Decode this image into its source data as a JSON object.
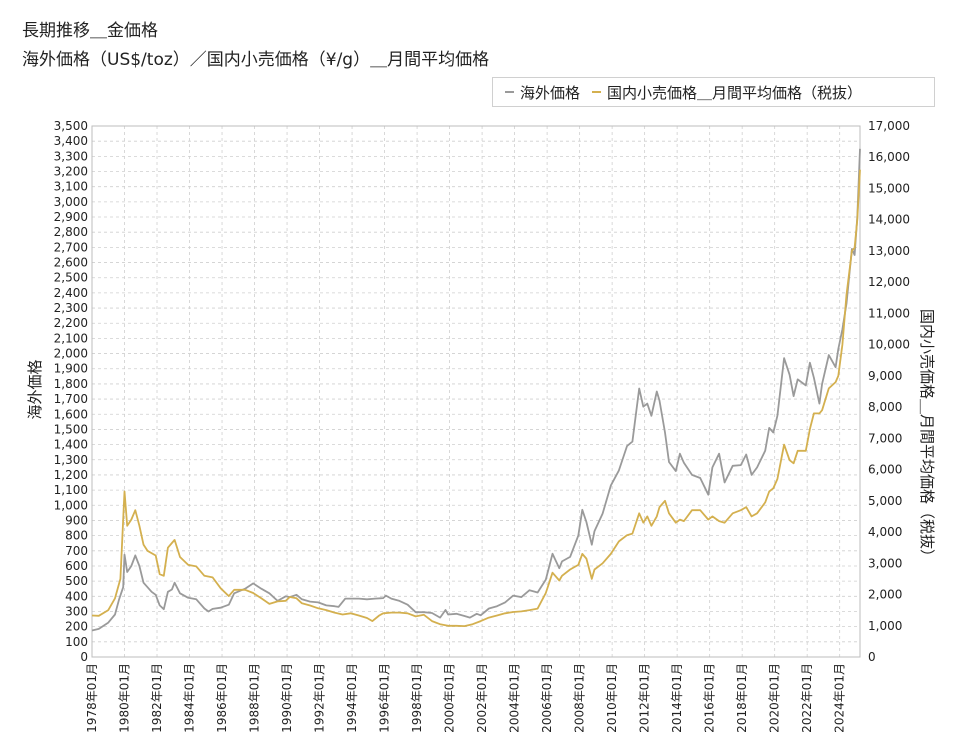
{
  "title_line1": "長期推移＿金価格",
  "title_line2": "海外価格（US$/toz）／国内小売価格（¥/g）＿月間平均価格",
  "chart_data": {
    "type": "line",
    "title": "長期推移＿金価格",
    "subtitle": "海外価格（US$/toz）／国内小売価格（¥/g）＿月間平均価格",
    "ylabel_left": "海外価格",
    "ylabel_right": "国内小売価格＿月間平均価格（税抜）",
    "ylim_left": [
      0,
      3500
    ],
    "ylim_right": [
      0,
      17000
    ],
    "left_ticks": [
      "0",
      "100",
      "200",
      "300",
      "400",
      "500",
      "600",
      "700",
      "800",
      "900",
      "1,000",
      "1,100",
      "1,200",
      "1,300",
      "1,400",
      "1,500",
      "1,600",
      "1,700",
      "1,800",
      "1,900",
      "2,000",
      "2,100",
      "2,200",
      "2,300",
      "2,400",
      "2,500",
      "2,600",
      "2,700",
      "2,800",
      "2,900",
      "3,000",
      "3,100",
      "3,200",
      "3,300",
      "3,400",
      "3,500"
    ],
    "right_ticks": [
      "0",
      "1,000",
      "2,000",
      "3,000",
      "4,000",
      "5,000",
      "6,000",
      "7,000",
      "8,000",
      "9,000",
      "10,000",
      "11,000",
      "12,000",
      "13,000",
      "14,000",
      "15,000",
      "16,000",
      "17,000"
    ],
    "x_ticks": [
      "1978年01月",
      "1980年01月",
      "1982年01月",
      "1984年01月",
      "1986年01月",
      "1988年01月",
      "1990年01月",
      "1992年01月",
      "1994年01月",
      "1996年01月",
      "1998年01月",
      "2000年01月",
      "2002年01月",
      "2004年01月",
      "2006年01月",
      "2008年01月",
      "2010年01月",
      "2012年01月",
      "2014年01月",
      "2016年01月",
      "2018年01月",
      "2020年01月",
      "2022年01月",
      "2024年01月"
    ],
    "x_range": [
      "1978-01",
      "2025-04"
    ],
    "grid": true,
    "legend_position": "top-right",
    "series": [
      {
        "name": "海外価格",
        "axis": "left",
        "color": "#9a9a9a",
        "points": [
          [
            "1978-01",
            175
          ],
          [
            "1978-06",
            185
          ],
          [
            "1979-01",
            227
          ],
          [
            "1979-06",
            280
          ],
          [
            "1979-09",
            380
          ],
          [
            "1979-12",
            460
          ],
          [
            "1980-01",
            675
          ],
          [
            "1980-03",
            560
          ],
          [
            "1980-06",
            600
          ],
          [
            "1980-09",
            670
          ],
          [
            "1980-12",
            600
          ],
          [
            "1981-03",
            490
          ],
          [
            "1981-06",
            460
          ],
          [
            "1981-09",
            430
          ],
          [
            "1981-12",
            410
          ],
          [
            "1982-03",
            340
          ],
          [
            "1982-06",
            315
          ],
          [
            "1982-09",
            430
          ],
          [
            "1982-12",
            445
          ],
          [
            "1983-02",
            490
          ],
          [
            "1983-06",
            420
          ],
          [
            "1983-12",
            390
          ],
          [
            "1984-06",
            380
          ],
          [
            "1984-12",
            320
          ],
          [
            "1985-03",
            300
          ],
          [
            "1985-06",
            317
          ],
          [
            "1985-12",
            325
          ],
          [
            "1986-06",
            345
          ],
          [
            "1986-10",
            420
          ],
          [
            "1987-06",
            450
          ],
          [
            "1987-12",
            485
          ],
          [
            "1988-06",
            450
          ],
          [
            "1988-12",
            420
          ],
          [
            "1989-06",
            370
          ],
          [
            "1989-12",
            400
          ],
          [
            "1990-03",
            395
          ],
          [
            "1990-08",
            410
          ],
          [
            "1990-12",
            380
          ],
          [
            "1991-06",
            365
          ],
          [
            "1991-12",
            360
          ],
          [
            "1992-06",
            340
          ],
          [
            "1992-12",
            335
          ],
          [
            "1993-03",
            330
          ],
          [
            "1993-08",
            385
          ],
          [
            "1993-12",
            385
          ],
          [
            "1994-06",
            385
          ],
          [
            "1994-12",
            380
          ],
          [
            "1995-06",
            385
          ],
          [
            "1995-12",
            388
          ],
          [
            "1996-02",
            405
          ],
          [
            "1996-06",
            385
          ],
          [
            "1996-12",
            370
          ],
          [
            "1997-06",
            345
          ],
          [
            "1997-12",
            295
          ],
          [
            "1998-06",
            295
          ],
          [
            "1998-12",
            290
          ],
          [
            "1999-06",
            260
          ],
          [
            "1999-10",
            310
          ],
          [
            "1999-12",
            280
          ],
          [
            "2000-06",
            285
          ],
          [
            "2000-12",
            270
          ],
          [
            "2001-04",
            260
          ],
          [
            "2001-09",
            285
          ],
          [
            "2001-12",
            275
          ],
          [
            "2002-06",
            320
          ],
          [
            "2002-12",
            335
          ],
          [
            "2003-06",
            360
          ],
          [
            "2003-12",
            405
          ],
          [
            "2004-06",
            395
          ],
          [
            "2004-12",
            440
          ],
          [
            "2005-06",
            425
          ],
          [
            "2005-12",
            510
          ],
          [
            "2006-05",
            680
          ],
          [
            "2006-10",
            585
          ],
          [
            "2006-12",
            630
          ],
          [
            "2007-06",
            660
          ],
          [
            "2007-12",
            800
          ],
          [
            "2008-03",
            970
          ],
          [
            "2008-06",
            890
          ],
          [
            "2008-10",
            740
          ],
          [
            "2008-12",
            830
          ],
          [
            "2009-06",
            945
          ],
          [
            "2009-12",
            1130
          ],
          [
            "2010-06",
            1230
          ],
          [
            "2010-12",
            1390
          ],
          [
            "2011-04",
            1420
          ],
          [
            "2011-09",
            1770
          ],
          [
            "2011-12",
            1650
          ],
          [
            "2012-03",
            1670
          ],
          [
            "2012-06",
            1590
          ],
          [
            "2012-10",
            1750
          ],
          [
            "2012-12",
            1690
          ],
          [
            "2013-04",
            1480
          ],
          [
            "2013-07",
            1285
          ],
          [
            "2013-12",
            1225
          ],
          [
            "2014-03",
            1340
          ],
          [
            "2014-06",
            1280
          ],
          [
            "2014-12",
            1200
          ],
          [
            "2015-06",
            1180
          ],
          [
            "2015-12",
            1070
          ],
          [
            "2016-03",
            1250
          ],
          [
            "2016-08",
            1340
          ],
          [
            "2016-12",
            1150
          ],
          [
            "2017-06",
            1260
          ],
          [
            "2017-12",
            1265
          ],
          [
            "2018-04",
            1335
          ],
          [
            "2018-08",
            1200
          ],
          [
            "2018-12",
            1250
          ],
          [
            "2019-06",
            1360
          ],
          [
            "2019-09",
            1510
          ],
          [
            "2019-12",
            1480
          ],
          [
            "2020-03",
            1590
          ],
          [
            "2020-08",
            1970
          ],
          [
            "2020-12",
            1860
          ],
          [
            "2021-03",
            1720
          ],
          [
            "2021-06",
            1830
          ],
          [
            "2021-12",
            1790
          ],
          [
            "2022-03",
            1940
          ],
          [
            "2022-06",
            1840
          ],
          [
            "2022-10",
            1670
          ],
          [
            "2022-12",
            1800
          ],
          [
            "2023-05",
            1990
          ],
          [
            "2023-10",
            1910
          ],
          [
            "2023-12",
            2030
          ],
          [
            "2024-03",
            2160
          ],
          [
            "2024-06",
            2330
          ],
          [
            "2024-10",
            2690
          ],
          [
            "2024-12",
            2650
          ],
          [
            "2025-02",
            2900
          ],
          [
            "2025-04",
            3350
          ]
        ]
      },
      {
        "name": "国内小売価格＿月間平均価格（税抜）",
        "axis": "right",
        "color": "#d4b04f",
        "points": [
          [
            "1978-01",
            1330
          ],
          [
            "1978-06",
            1320
          ],
          [
            "1979-01",
            1500
          ],
          [
            "1979-06",
            1880
          ],
          [
            "1979-10",
            2500
          ],
          [
            "1980-01",
            5300
          ],
          [
            "1980-03",
            4200
          ],
          [
            "1980-06",
            4400
          ],
          [
            "1980-09",
            4700
          ],
          [
            "1980-12",
            4200
          ],
          [
            "1981-03",
            3600
          ],
          [
            "1981-06",
            3400
          ],
          [
            "1981-12",
            3250
          ],
          [
            "1982-03",
            2650
          ],
          [
            "1982-06",
            2600
          ],
          [
            "1982-09",
            3500
          ],
          [
            "1982-12",
            3650
          ],
          [
            "1983-02",
            3750
          ],
          [
            "1983-06",
            3200
          ],
          [
            "1983-12",
            2950
          ],
          [
            "1984-06",
            2900
          ],
          [
            "1984-12",
            2600
          ],
          [
            "1985-06",
            2550
          ],
          [
            "1985-12",
            2200
          ],
          [
            "1986-06",
            1950
          ],
          [
            "1986-10",
            2150
          ],
          [
            "1987-06",
            2150
          ],
          [
            "1987-12",
            2050
          ],
          [
            "1988-06",
            1880
          ],
          [
            "1988-12",
            1700
          ],
          [
            "1989-06",
            1780
          ],
          [
            "1989-12",
            1800
          ],
          [
            "1990-03",
            1920
          ],
          [
            "1990-08",
            1880
          ],
          [
            "1990-12",
            1720
          ],
          [
            "1991-06",
            1650
          ],
          [
            "1991-12",
            1560
          ],
          [
            "1992-06",
            1500
          ],
          [
            "1992-12",
            1420
          ],
          [
            "1993-06",
            1360
          ],
          [
            "1993-12",
            1400
          ],
          [
            "1994-06",
            1330
          ],
          [
            "1994-12",
            1250
          ],
          [
            "1995-04",
            1150
          ],
          [
            "1995-09",
            1330
          ],
          [
            "1995-12",
            1400
          ],
          [
            "1996-06",
            1420
          ],
          [
            "1996-12",
            1420
          ],
          [
            "1997-06",
            1400
          ],
          [
            "1997-12",
            1300
          ],
          [
            "1998-06",
            1350
          ],
          [
            "1998-12",
            1150
          ],
          [
            "1999-06",
            1050
          ],
          [
            "1999-12",
            1000
          ],
          [
            "2000-06",
            1000
          ],
          [
            "2000-12",
            990
          ],
          [
            "2001-06",
            1050
          ],
          [
            "2001-12",
            1150
          ],
          [
            "2002-06",
            1260
          ],
          [
            "2002-12",
            1330
          ],
          [
            "2003-06",
            1400
          ],
          [
            "2003-12",
            1440
          ],
          [
            "2004-06",
            1460
          ],
          [
            "2004-12",
            1500
          ],
          [
            "2005-06",
            1550
          ],
          [
            "2005-12",
            2050
          ],
          [
            "2006-05",
            2700
          ],
          [
            "2006-10",
            2450
          ],
          [
            "2006-12",
            2600
          ],
          [
            "2007-06",
            2800
          ],
          [
            "2007-12",
            2950
          ],
          [
            "2008-03",
            3300
          ],
          [
            "2008-06",
            3150
          ],
          [
            "2008-10",
            2500
          ],
          [
            "2008-12",
            2800
          ],
          [
            "2009-06",
            3000
          ],
          [
            "2009-12",
            3300
          ],
          [
            "2010-06",
            3700
          ],
          [
            "2010-12",
            3900
          ],
          [
            "2011-04",
            3950
          ],
          [
            "2011-09",
            4600
          ],
          [
            "2011-12",
            4300
          ],
          [
            "2012-03",
            4500
          ],
          [
            "2012-06",
            4200
          ],
          [
            "2012-10",
            4500
          ],
          [
            "2012-12",
            4800
          ],
          [
            "2013-04",
            5000
          ],
          [
            "2013-07",
            4600
          ],
          [
            "2013-12",
            4300
          ],
          [
            "2014-03",
            4400
          ],
          [
            "2014-06",
            4350
          ],
          [
            "2014-12",
            4700
          ],
          [
            "2015-06",
            4700
          ],
          [
            "2015-12",
            4400
          ],
          [
            "2016-03",
            4500
          ],
          [
            "2016-08",
            4350
          ],
          [
            "2016-12",
            4300
          ],
          [
            "2017-06",
            4600
          ],
          [
            "2017-12",
            4700
          ],
          [
            "2018-04",
            4800
          ],
          [
            "2018-08",
            4500
          ],
          [
            "2018-12",
            4600
          ],
          [
            "2019-06",
            4950
          ],
          [
            "2019-09",
            5300
          ],
          [
            "2019-12",
            5400
          ],
          [
            "2020-03",
            5700
          ],
          [
            "2020-08",
            6800
          ],
          [
            "2020-12",
            6300
          ],
          [
            "2021-03",
            6200
          ],
          [
            "2021-06",
            6600
          ],
          [
            "2021-12",
            6600
          ],
          [
            "2022-03",
            7300
          ],
          [
            "2022-06",
            7800
          ],
          [
            "2022-10",
            7800
          ],
          [
            "2022-12",
            7900
          ],
          [
            "2023-05",
            8600
          ],
          [
            "2023-10",
            8800
          ],
          [
            "2023-12",
            9000
          ],
          [
            "2024-03",
            10000
          ],
          [
            "2024-06",
            11600
          ],
          [
            "2024-10",
            13000
          ],
          [
            "2024-12",
            13100
          ],
          [
            "2025-02",
            14000
          ],
          [
            "2025-04",
            15600
          ]
        ]
      }
    ]
  }
}
